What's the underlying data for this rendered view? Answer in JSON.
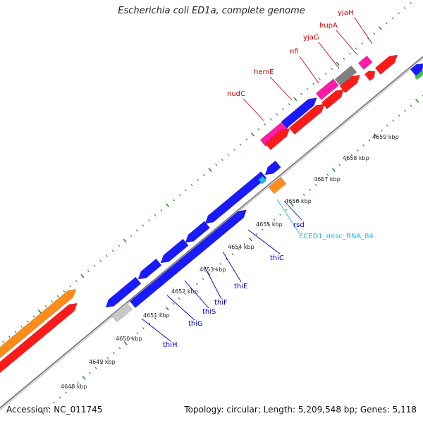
{
  "title": "Escherichia coli ED1a, complete genome",
  "footer": {
    "accession": "Accession: NC_011745",
    "summary": "Topology: circular; Length: 5,209,548 bp; Genes: 5,118"
  },
  "colors": {
    "backbone": "#808080",
    "outer_ticks": "#2e8b2e",
    "inner_ticks": "#2e8b2e",
    "red_gene": "#ff1a1a",
    "blue_gene": "#1a1aff",
    "magenta_gene": "#ff1aa8",
    "orange_gene": "#ff8c1a",
    "gray_gene": "#808080",
    "light_gray_gene": "#c8c8c8",
    "cyan_gene": "#22b5e0",
    "green_gene": "#2ecc40",
    "red_label": "#cc0000",
    "blue_label": "#0000cc",
    "cyan_label": "#22b5e0"
  },
  "tick_labels": [
    "4648 kbp",
    "4649 kbp",
    "4650 kbp",
    "4651 kbp",
    "4652 kbp",
    "4653 kbp",
    "4654 kbp",
    "4655 kbp",
    "4656 kbp",
    "4657 kbp",
    "4658 kbp",
    "4659 kbp"
  ],
  "gene_labels": [
    {
      "text": "yjaH",
      "color": "red"
    },
    {
      "text": "hupA",
      "color": "red"
    },
    {
      "text": "yjaG",
      "color": "red"
    },
    {
      "text": "nfi",
      "color": "red"
    },
    {
      "text": "hemE",
      "color": "red"
    },
    {
      "text": "nudC",
      "color": "red"
    },
    {
      "text": "rsd",
      "color": "blue"
    },
    {
      "text": "ECED1_misc_RNA_84",
      "color": "cyan"
    },
    {
      "text": "thiC",
      "color": "blue"
    },
    {
      "text": "thiE",
      "color": "blue"
    },
    {
      "text": "thiF",
      "color": "blue"
    },
    {
      "text": "thiS",
      "color": "blue"
    },
    {
      "text": "thiG",
      "color": "blue"
    },
    {
      "text": "thiH",
      "color": "blue"
    }
  ]
}
